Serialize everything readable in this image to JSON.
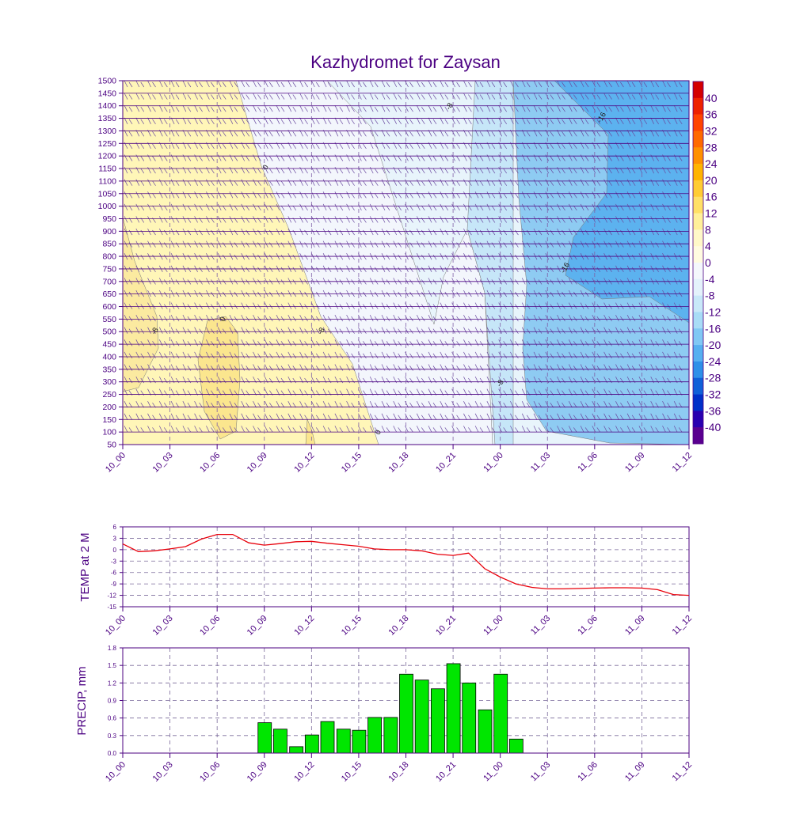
{
  "title": "Kazhydromet for Zaysan",
  "colors": {
    "axis": "#4b0082",
    "grid": "#7a6a9a",
    "temp_line": "#e8000b",
    "precip_bar": "#00e600",
    "bar_edge": "#000000"
  },
  "time_labels": [
    "10_00",
    "10_03",
    "10_06",
    "10_09",
    "10_12",
    "10_15",
    "10_18",
    "10_21",
    "11_00",
    "11_03",
    "11_06",
    "11_09",
    "11_12"
  ],
  "chart_data": [
    {
      "type": "heatmap",
      "name": "cross-section",
      "x": [
        0,
        1,
        2,
        3,
        4,
        5,
        6,
        7,
        8,
        9,
        10,
        11,
        12
      ],
      "xticklabels": [
        "10_00",
        "10_03",
        "10_06",
        "10_09",
        "10_12",
        "10_15",
        "10_18",
        "10_21",
        "11_00",
        "11_03",
        "11_06",
        "11_09",
        "11_12"
      ],
      "yticklabels": [
        "1500",
        "1450",
        "1400",
        "1350",
        "1300",
        "1250",
        "1200",
        "1150",
        "1100",
        "1050",
        "1000",
        "950",
        "900",
        "850",
        "800",
        "750",
        "700",
        "650",
        "600",
        "550",
        "500",
        "450",
        "400",
        "350",
        "300",
        "250",
        "200",
        "150",
        "100",
        "50"
      ],
      "ylim": [
        50,
        1500
      ],
      "colorbar_levels": [
        40,
        36,
        32,
        28,
        24,
        20,
        16,
        12,
        8,
        4,
        0,
        -4,
        -8,
        -12,
        -16,
        -20,
        -24,
        -28,
        -32,
        -36,
        -40
      ],
      "colorbar_colors": [
        "#d40000",
        "#ee2200",
        "#ff4400",
        "#ff6a00",
        "#ff9000",
        "#ffb400",
        "#ffcc33",
        "#ffe066",
        "#fff099",
        "#fff8c8",
        "#fffbe0",
        "#f4f7fc",
        "#e4f2fb",
        "#c8e8f8",
        "#a8dcf6",
        "#80c8f4",
        "#56b0f0",
        "#2e90e8",
        "#1060d8",
        "#0030c8",
        "#2800b0",
        "#5a0090"
      ],
      "contour_labels": [
        "-8",
        "-16",
        "0",
        "-16",
        "-8",
        "0",
        "-8",
        "-8",
        "0",
        "-8"
      ]
    },
    {
      "type": "line",
      "name": "temperature",
      "ylabel": "TEMP at 2 M",
      "xticklabels": [
        "10_00",
        "10_03",
        "10_06",
        "10_09",
        "10_12",
        "10_15",
        "10_18",
        "10_21",
        "11_00",
        "11_03",
        "11_06",
        "11_09",
        "11_12"
      ],
      "yticks": [
        6,
        3,
        0,
        -3,
        -6,
        -9,
        -12,
        -15
      ],
      "ylim": [
        -15,
        6
      ],
      "grid": true,
      "x": [
        0,
        0.33,
        0.67,
        1,
        1.33,
        1.67,
        2,
        2.33,
        2.67,
        3,
        3.33,
        3.67,
        4,
        4.33,
        4.67,
        5,
        5.33,
        5.67,
        6,
        6.33,
        6.67,
        7,
        7.33,
        7.67,
        8,
        8.33,
        8.67,
        9,
        9.33,
        9.67,
        10,
        10.33,
        10.67,
        11,
        11.33,
        11.67,
        12
      ],
      "values": [
        1.5,
        -0.5,
        -0.3,
        0.2,
        0.8,
        2.8,
        4,
        4,
        1.8,
        1.2,
        1.6,
        2.1,
        2.2,
        1.7,
        1.3,
        0.9,
        0.2,
        0,
        0,
        -0.3,
        -1.2,
        -1.5,
        -0.9,
        -5,
        -7.2,
        -9,
        -9.9,
        -10.3,
        -10.3,
        -10.2,
        -10.1,
        -10,
        -10,
        -10.1,
        -10.5,
        -11.8,
        -12
      ]
    },
    {
      "type": "bar",
      "name": "precipitation",
      "ylabel": "PRECIP, mm",
      "xticklabels": [
        "10_00",
        "10_03",
        "10_06",
        "10_09",
        "10_12",
        "10_15",
        "10_18",
        "10_21",
        "11_00",
        "11_03",
        "11_06",
        "11_09",
        "11_12"
      ],
      "yticks": [
        "1.8",
        "1.5",
        "1.2",
        "0.9",
        "0.6",
        "0.3",
        "0.0"
      ],
      "ylim": [
        0,
        1.8
      ],
      "grid": true,
      "x": [
        3,
        3.33,
        3.67,
        4,
        4.33,
        4.67,
        5,
        5.33,
        5.67,
        6,
        6.33,
        6.67,
        7,
        7.33,
        7.67,
        8,
        8.33
      ],
      "values": [
        0.52,
        0.41,
        0.11,
        0.31,
        0.54,
        0.41,
        0.39,
        0.61,
        0.61,
        1.35,
        1.25,
        1.1,
        1.53,
        1.2,
        0.74,
        1.35,
        0.24
      ]
    }
  ]
}
